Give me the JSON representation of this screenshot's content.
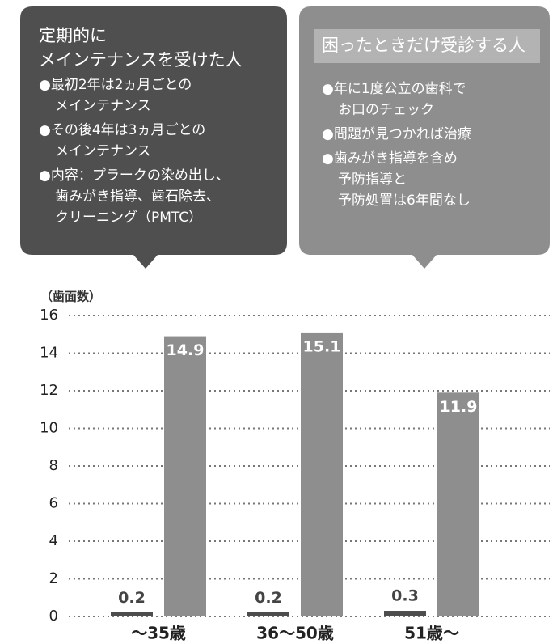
{
  "callouts": [
    {
      "title": [
        "定期的に",
        "メインテナンスを受けた人"
      ],
      "items": [
        [
          "●最初2年は2ヵ月ごとの",
          "メインテナンス"
        ],
        [
          "●その後4年は3ヵ月ごとの",
          "メインテナンス"
        ],
        [
          "●内容：プラークの染め出し、",
          "歯みがき指導、歯石除去、",
          "クリーニング（PMTC）"
        ]
      ]
    },
    {
      "title": [
        "困ったときだけ受診する人"
      ],
      "items": [
        [
          "●年に1度公立の歯科で",
          "お口のチェック"
        ],
        [
          "●問題が見つかれば治療"
        ],
        [
          "●歯みがき指導を含め",
          "予防指導と",
          "予防処置は6年間なし"
        ]
      ]
    }
  ],
  "chart_data": {
    "type": "bar",
    "y_label": "（歯面数）",
    "categories": [
      "〜35歳",
      "36〜50歳",
      "51歳〜"
    ],
    "series": [
      {
        "color": "#4d4d4d",
        "values": [
          0.2,
          0.2,
          0.3
        ]
      },
      {
        "color": "#8e8e8e",
        "values": [
          14.9,
          15.1,
          11.9
        ]
      }
    ],
    "ylim": [
      0,
      16
    ],
    "yticks": [
      0,
      2,
      4,
      6,
      8,
      10,
      12,
      14,
      16
    ],
    "grid": true
  }
}
